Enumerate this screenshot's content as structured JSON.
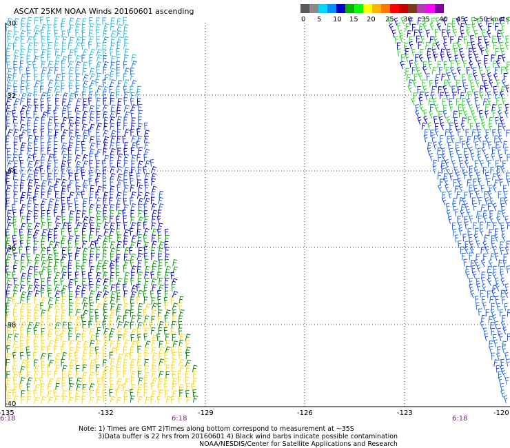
{
  "title": "ASCAT 25KM NOAA Winds 20160601 ascending",
  "colorbar": {
    "labels": [
      "0",
      "5",
      "10",
      "15",
      "20",
      "25",
      "30",
      "35",
      "40",
      "45",
      ">50 knots"
    ],
    "colors": [
      "#5a5a5a",
      "#8a8a8a",
      "#00d8ff",
      "#0090ff",
      "#0000c8",
      "#00b400",
      "#00ff00",
      "#ffff00",
      "#ffb400",
      "#ff7800",
      "#ff0000",
      "#c80000",
      "#7a3a1a",
      "#b43cb4",
      "#ff00ff",
      "#8000a0"
    ]
  },
  "axes": {
    "lat_labels": [
      "-30",
      "-32",
      "-34",
      "-36",
      "-38",
      "-40"
    ],
    "lon_labels": [
      "-135",
      "-132",
      "-129",
      "-126",
      "-123",
      "-120"
    ]
  },
  "times": [
    "6:18",
    "6:18",
    "6:18"
  ],
  "notes": [
    "Note: 1) Times are GMT 2)Times along bottom correspond to measurement at ~35S",
    "3)Data buffer is 22 hrs from 20160601 4) Black wind barbs indicate possible contamination",
    "NOAA/NESDIS/Center for Satellite Applications and Research"
  ]
}
